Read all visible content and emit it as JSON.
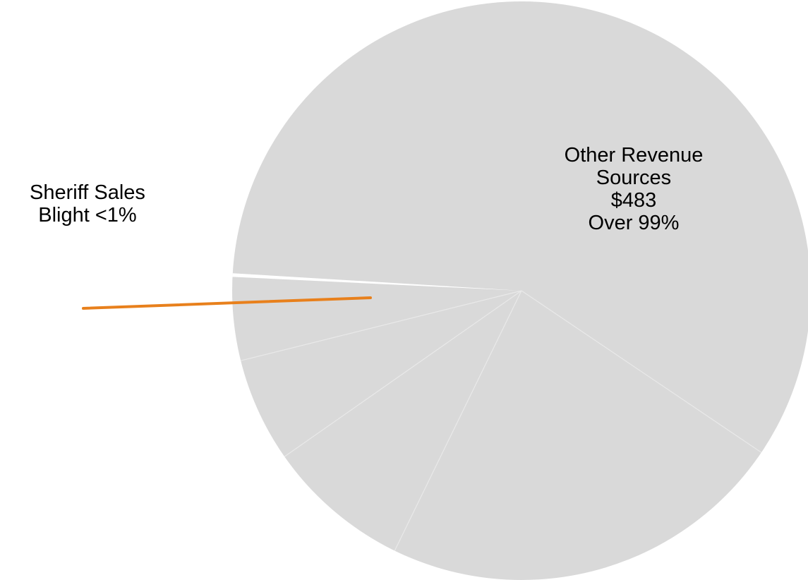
{
  "chart_data": {
    "type": "pie",
    "title": "",
    "slices": [
      {
        "name_lines": [
          "Sheriff Sales",
          "Blight <1%"
        ],
        "share": 0.002,
        "color": "#E8801C"
      },
      {
        "name_lines": [
          "Other Revenue",
          "Sources",
          "$483",
          "Over 99%"
        ],
        "value": 483,
        "share": 0.998,
        "color": "#D9D9D9"
      }
    ],
    "slice_border_color": "#E9E9E9",
    "legend": "none"
  }
}
